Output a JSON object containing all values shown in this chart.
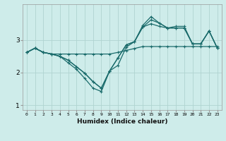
{
  "xlabel": "Humidex (Indice chaleur)",
  "background_color": "#ceecea",
  "line_color": "#1a6b6b",
  "grid_color": "#b0d4d0",
  "x": [
    0,
    1,
    2,
    3,
    4,
    5,
    6,
    7,
    8,
    9,
    10,
    11,
    12,
    13,
    14,
    15,
    16,
    17,
    18,
    19,
    20,
    21,
    22,
    23
  ],
  "line1": [
    2.62,
    2.75,
    2.62,
    2.57,
    2.57,
    2.57,
    2.57,
    2.57,
    2.57,
    2.57,
    2.57,
    2.62,
    2.68,
    2.74,
    2.8,
    2.8,
    2.8,
    2.8,
    2.8,
    2.8,
    2.8,
    2.8,
    2.8,
    2.8
  ],
  "line2": [
    2.62,
    2.75,
    2.62,
    2.57,
    2.5,
    2.38,
    2.18,
    1.98,
    1.72,
    1.52,
    2.05,
    2.45,
    2.85,
    2.95,
    3.4,
    3.5,
    3.42,
    3.37,
    3.42,
    3.42,
    2.88,
    2.88,
    3.28,
    2.75
  ],
  "line3": [
    2.62,
    2.75,
    2.62,
    2.57,
    2.5,
    2.38,
    2.18,
    1.98,
    1.72,
    1.52,
    2.05,
    2.45,
    2.85,
    2.95,
    3.4,
    3.62,
    3.52,
    3.37,
    3.37,
    3.37,
    2.88,
    2.88,
    3.28,
    2.75
  ],
  "line4": [
    2.62,
    2.75,
    2.62,
    2.57,
    2.5,
    2.3,
    2.1,
    1.82,
    1.52,
    1.42,
    2.05,
    2.22,
    2.78,
    2.95,
    3.45,
    3.72,
    3.52,
    3.37,
    3.37,
    3.37,
    2.88,
    2.88,
    3.28,
    2.75
  ],
  "ylim": [
    0.85,
    4.1
  ],
  "xlim": [
    -0.5,
    23.5
  ],
  "yticks": [
    1,
    2,
    3
  ],
  "xticks": [
    0,
    1,
    2,
    3,
    4,
    5,
    6,
    7,
    8,
    9,
    10,
    11,
    12,
    13,
    14,
    15,
    16,
    17,
    18,
    19,
    20,
    21,
    22,
    23
  ]
}
